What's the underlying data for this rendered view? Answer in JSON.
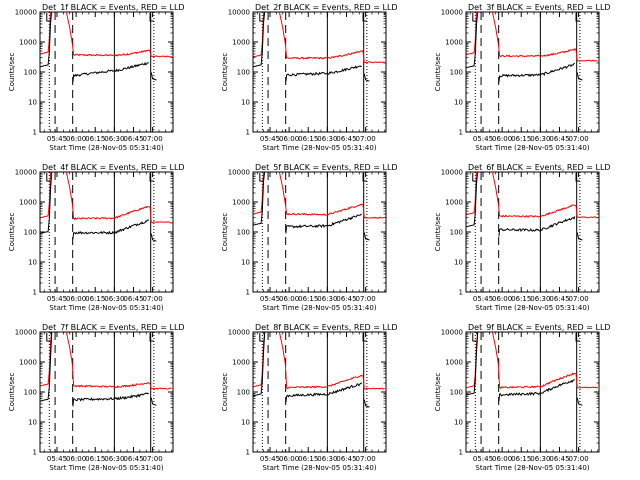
{
  "figure": {
    "background": "#ffffff",
    "foreground": "#000000",
    "accent": "#ff0000"
  },
  "chart_data": {
    "type": "line",
    "x_ticks": [
      "05:45",
      "06:00",
      "06:15",
      "06:30",
      "06:45",
      "07:00"
    ],
    "x_tick_minutes": [
      345,
      360,
      375,
      390,
      405,
      420
    ],
    "xlim_minutes": [
      331.67,
      436
    ],
    "ylim": [
      1,
      10000
    ],
    "y_scale": "log",
    "y_ticks": [
      "1",
      "10",
      "100",
      "1000",
      "10000"
    ],
    "y_tick_values": [
      1,
      10,
      100,
      1000,
      10000
    ],
    "xlabel": "Start Time (28-Nov-05 05:31:40)",
    "ylabel": "Counts/sec",
    "series_colors": {
      "Events": "#000000",
      "LLD": "#ff0000"
    },
    "dashed_markers_minutes": [
      343.5,
      357.3
    ],
    "dotted_markers_minutes": [
      339,
      421
    ],
    "solid_markers_minutes": [
      390,
      418.5
    ],
    "panels": [
      {
        "title": "Det_1f BLACK = Events, RED = LLD",
        "events_level": [
          150,
          75,
          110,
          160,
          60
        ],
        "lld_level": [
          400,
          370,
          360,
          410,
          330
        ]
      },
      {
        "title": "Det_2f BLACK = Events, RED = LLD",
        "events_level": [
          150,
          80,
          90,
          130,
          55
        ],
        "lld_level": [
          320,
          290,
          290,
          390,
          210
        ]
      },
      {
        "title": "Det_3f BLACK = Events, RED = LLD",
        "events_level": [
          140,
          75,
          80,
          140,
          60
        ],
        "lld_level": [
          380,
          340,
          340,
          440,
          240
        ]
      },
      {
        "title": "Det_4f BLACK = Events, RED = LLD",
        "events_level": [
          90,
          95,
          95,
          190,
          55
        ],
        "lld_level": [
          300,
          280,
          290,
          560,
          210
        ]
      },
      {
        "title": "Det_5f BLACK = Events, RED = LLD",
        "events_level": [
          170,
          150,
          160,
          300,
          60
        ],
        "lld_level": [
          400,
          400,
          380,
          650,
          300
        ]
      },
      {
        "title": "Det_6f BLACK = Events, RED = LLD",
        "events_level": [
          150,
          120,
          115,
          240,
          60
        ],
        "lld_level": [
          380,
          340,
          330,
          620,
          310
        ]
      },
      {
        "title": "Det_7f BLACK = Events, RED = LLD",
        "events_level": [
          50,
          55,
          60,
          70,
          40
        ],
        "lld_level": [
          160,
          160,
          150,
          160,
          130
        ]
      },
      {
        "title": "Det_8f BLACK = Events, RED = LLD",
        "events_level": [
          75,
          75,
          85,
          150,
          35
        ],
        "lld_level": [
          150,
          140,
          150,
          280,
          130
        ]
      },
      {
        "title": "Det_9f BLACK = Events, RED = LLD",
        "events_level": [
          80,
          80,
          90,
          200,
          40
        ],
        "lld_level": [
          140,
          140,
          150,
          330,
          140
        ]
      }
    ]
  }
}
